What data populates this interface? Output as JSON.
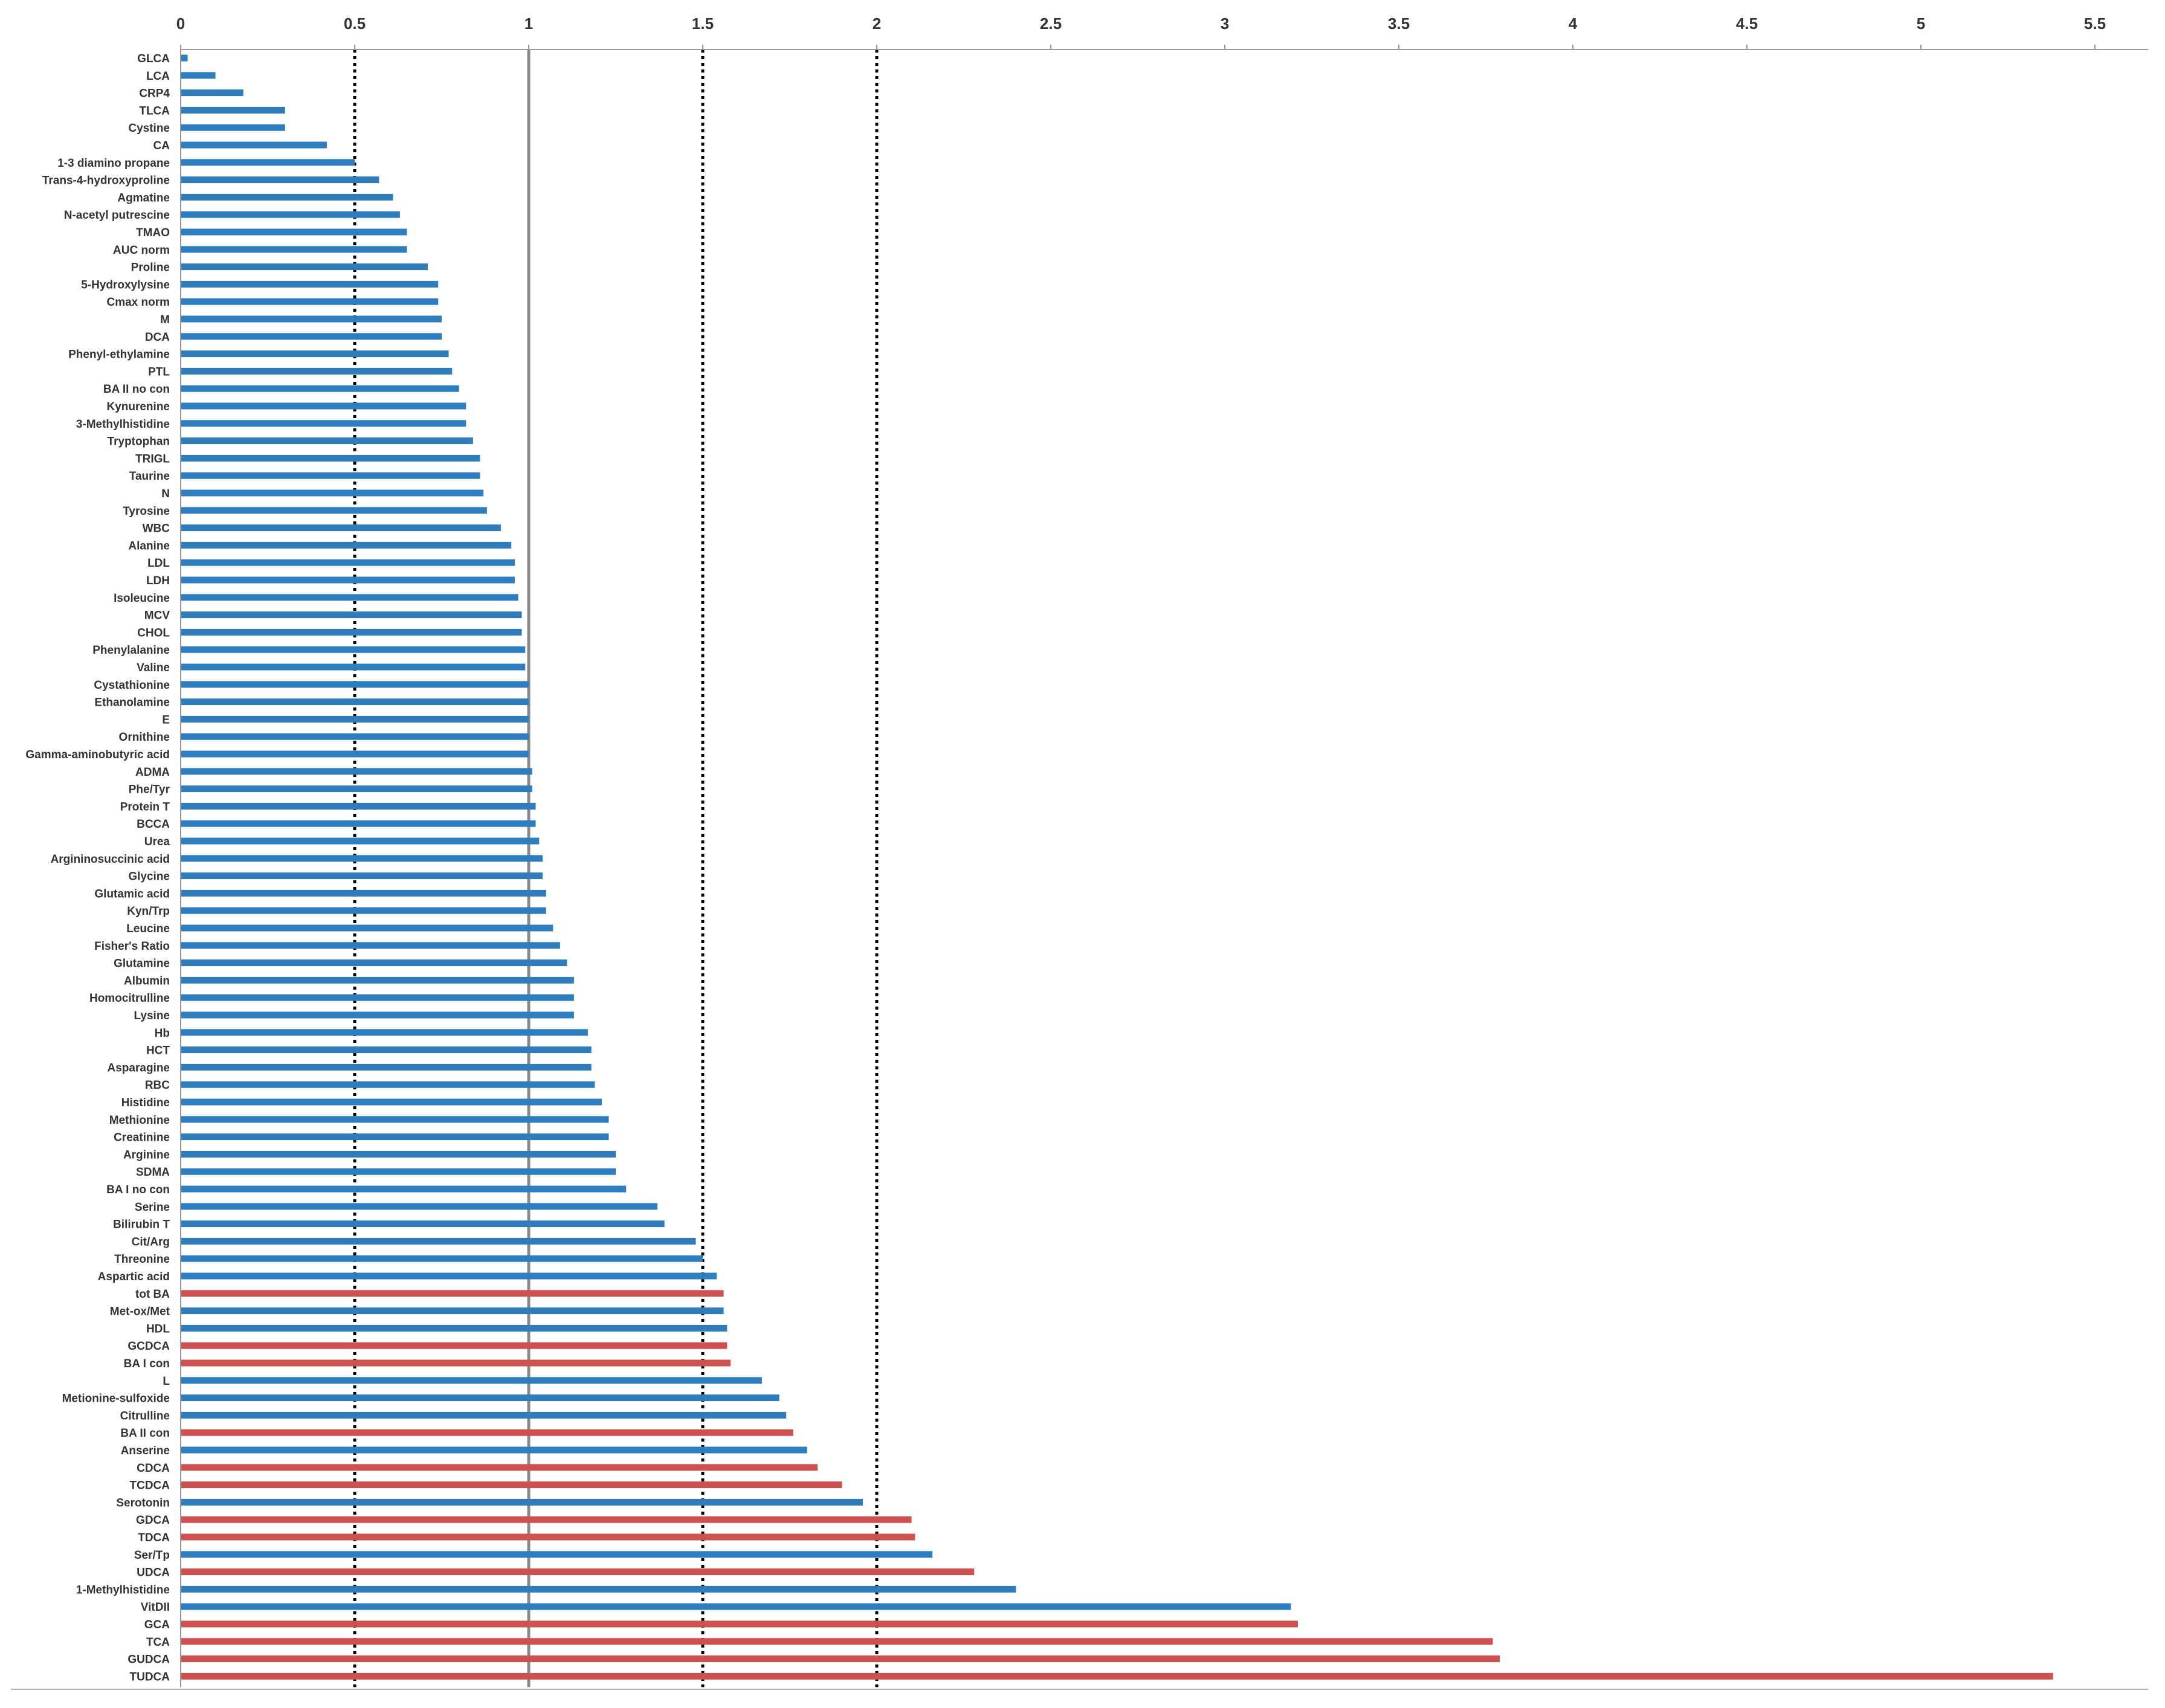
{
  "chart_data": {
    "type": "bar",
    "orientation": "horizontal",
    "title": "",
    "xlabel": "",
    "ylabel": "",
    "xlim": [
      0,
      5.5
    ],
    "x_ticks": [
      "0",
      "0.5",
      "1",
      "1.5",
      "2",
      "2.5",
      "3",
      "3.5",
      "4",
      "4.5",
      "5",
      "5.5"
    ],
    "x_axis_position": "top",
    "grid": false,
    "legend": "none",
    "reference_lines": [
      {
        "value": 0.5,
        "style": "dotted",
        "color": "#000000"
      },
      {
        "value": 1,
        "style": "solid",
        "color": "#8a8a8a"
      },
      {
        "value": 1.5,
        "style": "dotted",
        "color": "#000000"
      },
      {
        "value": 2,
        "style": "dotted",
        "color": "#000000"
      }
    ],
    "colors": {
      "blue": "#2e7dbf",
      "red": "#d0504f"
    },
    "categories": [
      "GLCA",
      "LCA",
      "CRP4",
      "TLCA",
      "Cystine",
      "CA",
      "1-3 diamino propane",
      "Trans-4-hydroxyproline",
      "Agmatine",
      "N-acetyl putrescine",
      "TMAO",
      "AUC norm",
      "Proline",
      "5-Hydroxylysine",
      "Cmax norm",
      "M",
      "DCA",
      "Phenyl-ethylamine",
      "PTL",
      "BA II no con",
      "Kynurenine",
      "3-Methylhistidine",
      "Tryptophan",
      "TRIGL",
      "Taurine",
      "N",
      "Tyrosine",
      "WBC",
      "Alanine",
      "LDL",
      "LDH",
      "Isoleucine",
      "MCV",
      "CHOL",
      "Phenylalanine",
      "Valine",
      "Cystathionine",
      "Ethanolamine",
      "E",
      "Ornithine",
      "Gamma-aminobutyric acid",
      "ADMA",
      "Phe/Tyr",
      "Protein T",
      "BCCA",
      "Urea",
      "Argininosuccinic acid",
      "Glycine",
      "Glutamic acid",
      "Kyn/Trp",
      "Leucine",
      "Fisher's Ratio",
      "Glutamine",
      "Albumin",
      "Homocitrulline",
      "Lysine",
      "Hb",
      "HCT",
      "Asparagine",
      "RBC",
      "Histidine",
      "Methionine",
      "Creatinine",
      "Arginine",
      "SDMA",
      "BA I no con",
      "Serine",
      "Bilirubin T",
      "Cit/Arg",
      "Threonine",
      "Aspartic acid",
      "tot BA",
      "Met-ox/Met",
      "HDL",
      "GCDCA",
      "BA I con",
      "L",
      "Metionine-sulfoxide",
      "Citrulline",
      "BA II con",
      "Anserine",
      "CDCA",
      "TCDCA",
      "Serotonin",
      "GDCA",
      "TDCA",
      "Ser/Tp",
      "UDCA",
      "1-Methylhistidine",
      "VitDII",
      "GCA",
      "TCA",
      "GUDCA",
      "TUDCA"
    ],
    "values": [
      0.02,
      0.1,
      0.18,
      0.3,
      0.3,
      0.42,
      0.5,
      0.57,
      0.61,
      0.63,
      0.65,
      0.65,
      0.71,
      0.74,
      0.74,
      0.75,
      0.75,
      0.77,
      0.78,
      0.8,
      0.82,
      0.82,
      0.84,
      0.86,
      0.86,
      0.87,
      0.88,
      0.92,
      0.95,
      0.96,
      0.96,
      0.97,
      0.98,
      0.98,
      0.99,
      0.99,
      1.0,
      1.0,
      1.0,
      1.0,
      1.0,
      1.01,
      1.01,
      1.02,
      1.02,
      1.03,
      1.04,
      1.04,
      1.05,
      1.05,
      1.07,
      1.09,
      1.11,
      1.13,
      1.13,
      1.13,
      1.17,
      1.18,
      1.18,
      1.19,
      1.21,
      1.23,
      1.23,
      1.25,
      1.25,
      1.28,
      1.37,
      1.39,
      1.48,
      1.5,
      1.54,
      1.56,
      1.56,
      1.57,
      1.57,
      1.58,
      1.67,
      1.72,
      1.74,
      1.76,
      1.8,
      1.83,
      1.9,
      1.96,
      2.1,
      2.11,
      2.16,
      2.28,
      2.4,
      3.19,
      3.21,
      3.77,
      3.79,
      5.38
    ],
    "bar_colors": [
      "blue",
      "blue",
      "blue",
      "blue",
      "blue",
      "blue",
      "blue",
      "blue",
      "blue",
      "blue",
      "blue",
      "blue",
      "blue",
      "blue",
      "blue",
      "blue",
      "blue",
      "blue",
      "blue",
      "blue",
      "blue",
      "blue",
      "blue",
      "blue",
      "blue",
      "blue",
      "blue",
      "blue",
      "blue",
      "blue",
      "blue",
      "blue",
      "blue",
      "blue",
      "blue",
      "blue",
      "blue",
      "blue",
      "blue",
      "blue",
      "blue",
      "blue",
      "blue",
      "blue",
      "blue",
      "blue",
      "blue",
      "blue",
      "blue",
      "blue",
      "blue",
      "blue",
      "blue",
      "blue",
      "blue",
      "blue",
      "blue",
      "blue",
      "blue",
      "blue",
      "blue",
      "blue",
      "blue",
      "blue",
      "blue",
      "blue",
      "blue",
      "blue",
      "blue",
      "blue",
      "blue",
      "red",
      "blue",
      "blue",
      "red",
      "red",
      "blue",
      "blue",
      "blue",
      "red",
      "blue",
      "red",
      "red",
      "blue",
      "red",
      "red",
      "blue",
      "red",
      "blue",
      "blue",
      "red",
      "red",
      "red",
      "red"
    ]
  }
}
